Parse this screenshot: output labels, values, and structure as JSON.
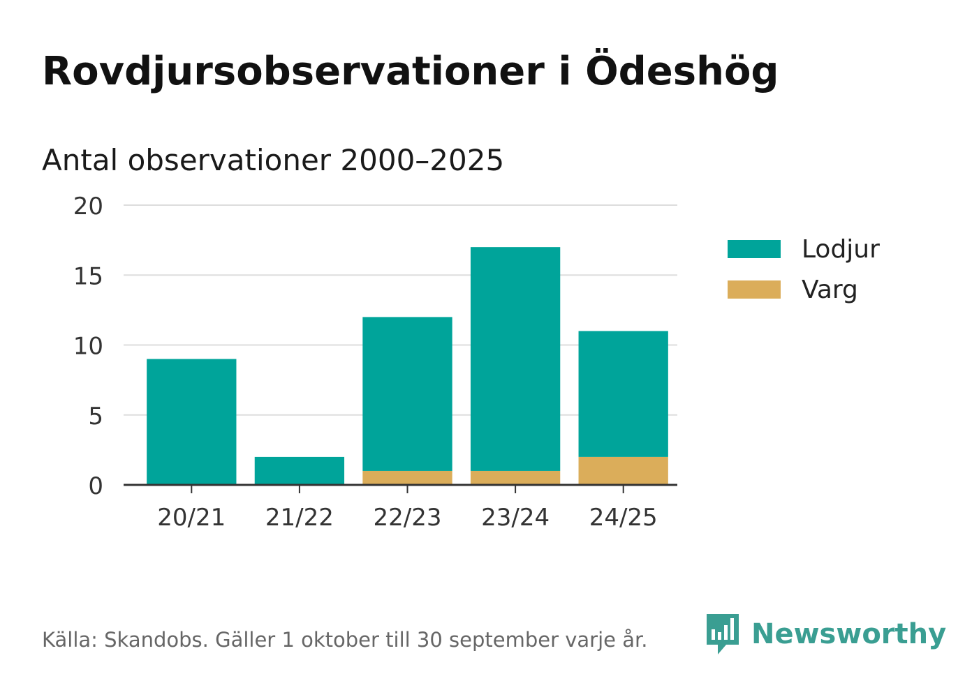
{
  "header": {
    "title": "Rovdjursobservationer i Ödeshög",
    "subtitle": "Antal observationer 2000–2025"
  },
  "chart_data": {
    "type": "bar",
    "stacked": true,
    "categories": [
      "20/21",
      "21/22",
      "22/23",
      "23/24",
      "24/25"
    ],
    "series": [
      {
        "name": "Varg",
        "color": "#dbad5a",
        "values": [
          0,
          0,
          1,
          1,
          2
        ]
      },
      {
        "name": "Lodjur",
        "color": "#00a49a",
        "values": [
          9,
          2,
          11,
          16,
          9
        ]
      }
    ],
    "ylim": [
      0,
      20
    ],
    "yticks": [
      0,
      5,
      10,
      15,
      20
    ],
    "grid": true,
    "legend_position": "right",
    "xlabel": "",
    "ylabel": ""
  },
  "legend": {
    "items": [
      {
        "label": "Lodjur",
        "color": "#00a49a"
      },
      {
        "label": "Varg",
        "color": "#dbad5a"
      }
    ]
  },
  "footer": {
    "source": "Källa: Skandobs. Gäller 1 oktober till 30 september varje år.",
    "brand": "Newsworthy",
    "brand_color": "#3a9e92",
    "brand_icon": "bar-chart-speech-bubble-icon"
  }
}
